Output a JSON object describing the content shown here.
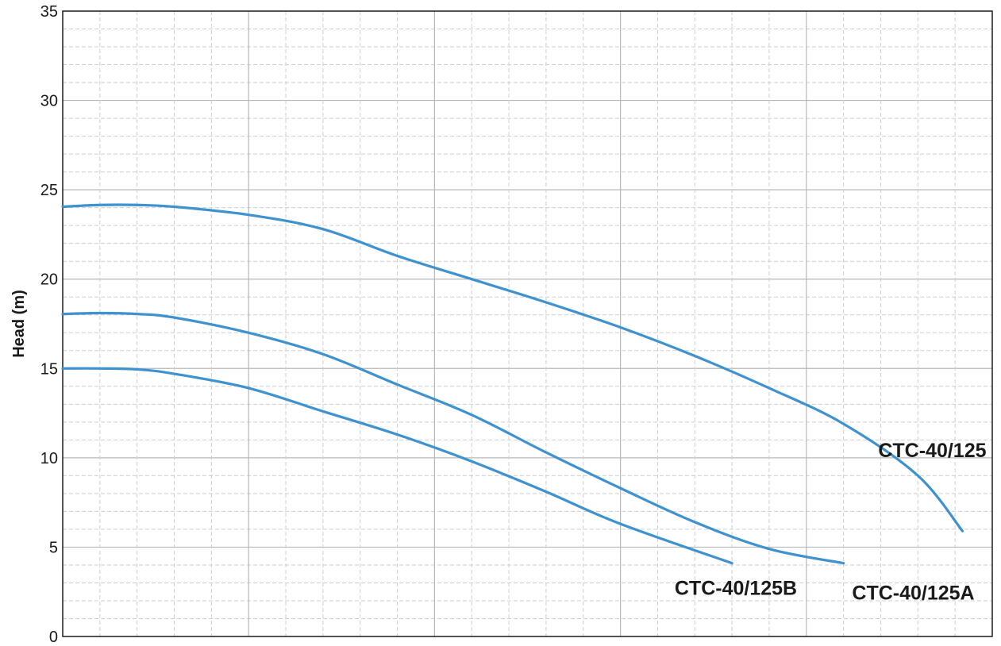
{
  "chart_data": {
    "type": "line",
    "title": "",
    "xlabel": "",
    "ylabel": "Head (m)",
    "xlim": [
      0,
      25
    ],
    "ylim": [
      0,
      35
    ],
    "yticks": [
      0,
      5,
      10,
      15,
      20,
      25,
      30,
      35
    ],
    "grid": true,
    "series_color": "#3d92cf",
    "series": [
      {
        "name": "CTC-40/125",
        "x": [
          0,
          1,
          2,
          3,
          5,
          7,
          9,
          11,
          13,
          15,
          17,
          19,
          21,
          23,
          24.2
        ],
        "y": [
          24.05,
          24.15,
          24.15,
          24.05,
          23.6,
          22.8,
          21.3,
          20.0,
          18.7,
          17.3,
          15.7,
          13.9,
          11.9,
          9.0,
          5.9
        ]
      },
      {
        "name": "CTC-40/125A",
        "x": [
          0,
          1,
          2,
          3,
          5,
          7,
          9,
          11,
          13,
          15,
          17,
          19,
          21
        ],
        "y": [
          18.05,
          18.1,
          18.05,
          17.85,
          17.0,
          15.8,
          14.1,
          12.4,
          10.3,
          8.3,
          6.4,
          4.9,
          4.1
        ]
      },
      {
        "name": "CTC-40/125B",
        "x": [
          0,
          1,
          2,
          3,
          5,
          7,
          9,
          11,
          13,
          15,
          18
        ],
        "y": [
          15.0,
          15.0,
          14.95,
          14.7,
          13.9,
          12.6,
          11.3,
          9.8,
          8.1,
          6.3,
          4.1
        ]
      }
    ]
  }
}
